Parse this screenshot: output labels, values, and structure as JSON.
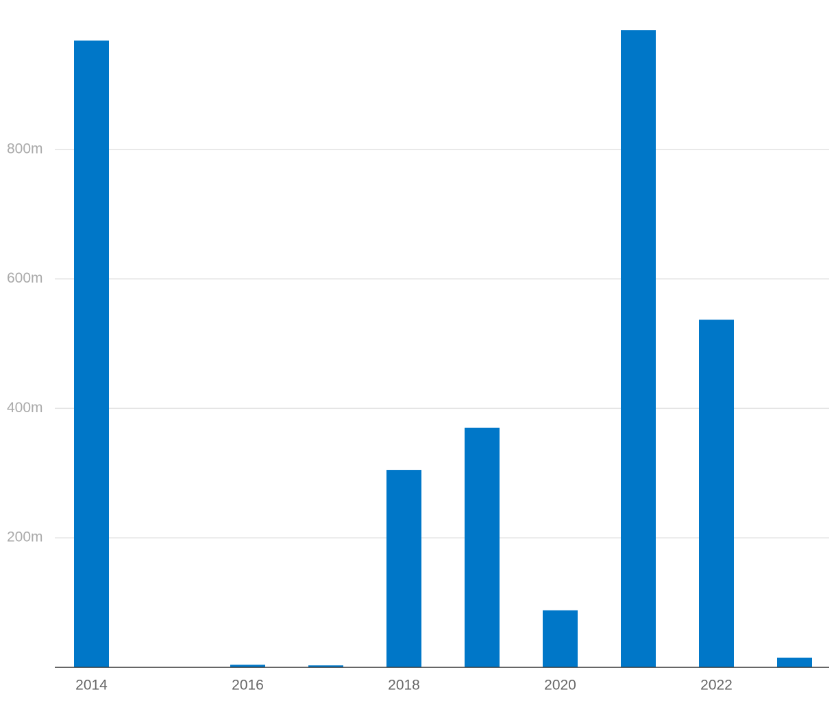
{
  "chart_data": {
    "type": "bar",
    "categories": [
      "2014",
      null,
      "2016",
      null,
      "2018",
      null,
      "2020",
      null,
      "2022",
      null
    ],
    "values": [
      968,
      0,
      4,
      3,
      305,
      370,
      88,
      984,
      537,
      15
    ],
    "color": "#0077c8",
    "ylim": [
      0,
      1000
    ],
    "yticks": [
      {
        "value": 200,
        "label": "200m"
      },
      {
        "value": 400,
        "label": "400m"
      },
      {
        "value": 600,
        "label": "600m"
      },
      {
        "value": 800,
        "label": "800m"
      }
    ],
    "grid": true
  }
}
